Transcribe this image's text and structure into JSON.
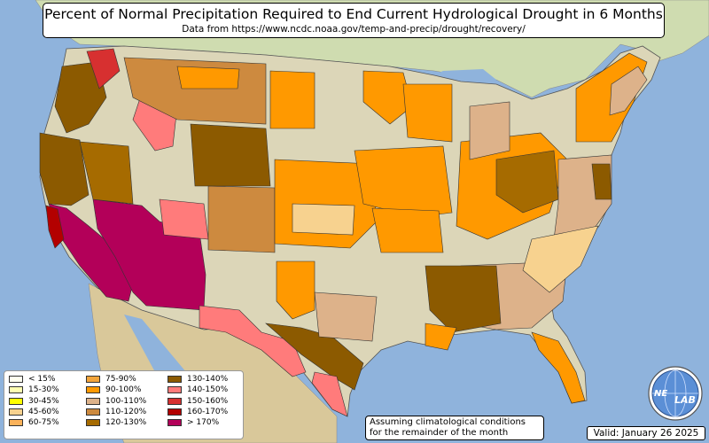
{
  "title": "Percent of Normal Precipitation Required to End Current Hydrological Drought in 6 Months",
  "subtitle": "Data from https://www.ncdc.noaa.gov/temp-and-precip/drought/recovery/",
  "note_line1": "Assuming climatological conditions",
  "note_line2": "for the remainder of the month",
  "valid": "Valid: January 26 2025",
  "logo": {
    "text_left": "NE",
    "text_right": "LAB",
    "icon": "nexlab-globe-logo"
  },
  "colors": {
    "ocean": "#8fb3dc",
    "land": "#dcd6b8",
    "canada": "#cfdcb0",
    "mexico": "#d9c89a"
  },
  "legend": {
    "items": [
      {
        "label": "< 15%",
        "color": "#fffff0"
      },
      {
        "label": "15-30%",
        "color": "#ffffb2"
      },
      {
        "label": "30-45%",
        "color": "#ffff00"
      },
      {
        "label": "45-60%",
        "color": "#f7d28f"
      },
      {
        "label": "60-75%",
        "color": "#fbb25a"
      },
      {
        "label": "75-90%",
        "color": "#f3a53b"
      },
      {
        "label": "90-100%",
        "color": "#ff9900"
      },
      {
        "label": "100-110%",
        "color": "#ddb28a"
      },
      {
        "label": "110-120%",
        "color": "#cd8a3f"
      },
      {
        "label": "120-130%",
        "color": "#a66b00"
      },
      {
        "label": "130-140%",
        "color": "#8c5a00"
      },
      {
        "label": "140-150%",
        "color": "#ff7b7b"
      },
      {
        "label": "150-160%",
        "color": "#d73030"
      },
      {
        "label": "160-170%",
        "color": "#b30000"
      },
      {
        "label": "> 170%",
        "color": "#b30059"
      }
    ]
  }
}
